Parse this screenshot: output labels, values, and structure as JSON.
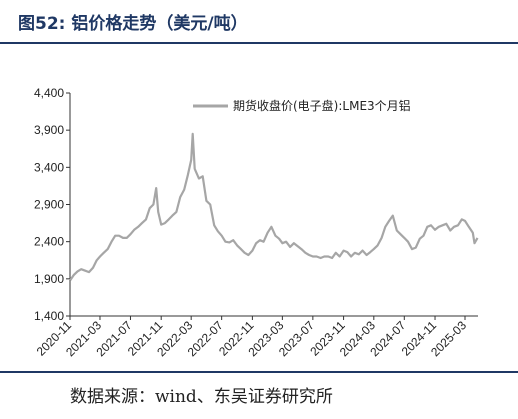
{
  "figure": {
    "title": "图52: 铝价格走势（美元/吨）",
    "source": "数据来源：wind、东吴证券研究所"
  },
  "chart_data": {
    "type": "line",
    "title": "",
    "xlabel": "",
    "ylabel": "",
    "ylim": [
      1400,
      4400
    ],
    "yticks": [
      1400,
      1900,
      2400,
      2900,
      3400,
      3900,
      4400
    ],
    "ytick_labels": [
      "1,400",
      "1,900",
      "2,400",
      "2,900",
      "3,400",
      "3,900",
      "4,400"
    ],
    "xticks": [
      "2020-11",
      "2021-03",
      "2021-07",
      "2021-11",
      "2022-03",
      "2022-07",
      "2022-11",
      "2023-03",
      "2023-07",
      "2023-11",
      "2024-03",
      "2024-07",
      "2024-11",
      "2025-03"
    ],
    "grid": false,
    "legend_position": "top-right",
    "color": "#a6a6a6",
    "series": [
      {
        "name": "期货收盘价(电子盘):LME3个月铝",
        "x": [
          "2020-11-02",
          "2020-11-16",
          "2020-12-01",
          "2020-12-16",
          "2021-01-01",
          "2021-01-16",
          "2021-02-01",
          "2021-02-16",
          "2021-03-01",
          "2021-03-16",
          "2021-04-01",
          "2021-04-16",
          "2021-05-01",
          "2021-05-16",
          "2021-06-01",
          "2021-06-16",
          "2021-07-01",
          "2021-07-16",
          "2021-08-01",
          "2021-08-16",
          "2021-09-01",
          "2021-09-16",
          "2021-10-01",
          "2021-10-12",
          "2021-10-20",
          "2021-11-01",
          "2021-11-16",
          "2021-12-01",
          "2021-12-16",
          "2022-01-01",
          "2022-01-16",
          "2022-02-01",
          "2022-02-16",
          "2022-03-01",
          "2022-03-07",
          "2022-03-15",
          "2022-04-01",
          "2022-04-16",
          "2022-05-01",
          "2022-05-16",
          "2022-06-01",
          "2022-06-16",
          "2022-07-01",
          "2022-07-16",
          "2022-08-01",
          "2022-08-16",
          "2022-09-01",
          "2022-09-16",
          "2022-10-01",
          "2022-10-16",
          "2022-11-01",
          "2022-11-16",
          "2022-12-01",
          "2022-12-16",
          "2023-01-01",
          "2023-01-16",
          "2023-02-01",
          "2023-02-16",
          "2023-03-01",
          "2023-03-16",
          "2023-04-01",
          "2023-04-16",
          "2023-05-01",
          "2023-05-16",
          "2023-06-01",
          "2023-06-16",
          "2023-07-01",
          "2023-07-16",
          "2023-08-01",
          "2023-08-16",
          "2023-09-01",
          "2023-09-16",
          "2023-10-01",
          "2023-10-16",
          "2023-11-01",
          "2023-11-16",
          "2023-12-01",
          "2023-12-16",
          "2024-01-01",
          "2024-01-16",
          "2024-02-01",
          "2024-02-16",
          "2024-03-01",
          "2024-03-16",
          "2024-04-01",
          "2024-04-16",
          "2024-05-01",
          "2024-05-16",
          "2024-06-01",
          "2024-06-16",
          "2024-07-01",
          "2024-07-16",
          "2024-08-01",
          "2024-08-16",
          "2024-09-01",
          "2024-09-16",
          "2024-10-01",
          "2024-10-16",
          "2024-11-01",
          "2024-11-16",
          "2024-12-01",
          "2024-12-16",
          "2025-01-01",
          "2025-01-16",
          "2025-02-01",
          "2025-02-16",
          "2025-03-01",
          "2025-03-16",
          "2025-04-01",
          "2025-04-08",
          "2025-04-20"
        ],
        "values": [
          1880,
          1950,
          2000,
          2030,
          2010,
          1990,
          2050,
          2150,
          2200,
          2250,
          2300,
          2400,
          2480,
          2480,
          2450,
          2450,
          2500,
          2560,
          2600,
          2650,
          2700,
          2850,
          2900,
          3120,
          2800,
          2630,
          2650,
          2700,
          2750,
          2800,
          3000,
          3100,
          3300,
          3500,
          3850,
          3380,
          3250,
          3280,
          2950,
          2900,
          2620,
          2540,
          2480,
          2400,
          2390,
          2420,
          2350,
          2300,
          2250,
          2220,
          2280,
          2380,
          2420,
          2400,
          2520,
          2600,
          2480,
          2440,
          2380,
          2400,
          2330,
          2380,
          2340,
          2300,
          2250,
          2220,
          2200,
          2200,
          2180,
          2200,
          2200,
          2180,
          2250,
          2200,
          2280,
          2260,
          2200,
          2250,
          2230,
          2280,
          2220,
          2260,
          2300,
          2350,
          2450,
          2600,
          2680,
          2750,
          2550,
          2500,
          2450,
          2400,
          2300,
          2320,
          2440,
          2480,
          2600,
          2620,
          2560,
          2600,
          2620,
          2640,
          2550,
          2600,
          2620,
          2700,
          2680,
          2600,
          2520,
          2380,
          2450
        ]
      }
    ]
  }
}
